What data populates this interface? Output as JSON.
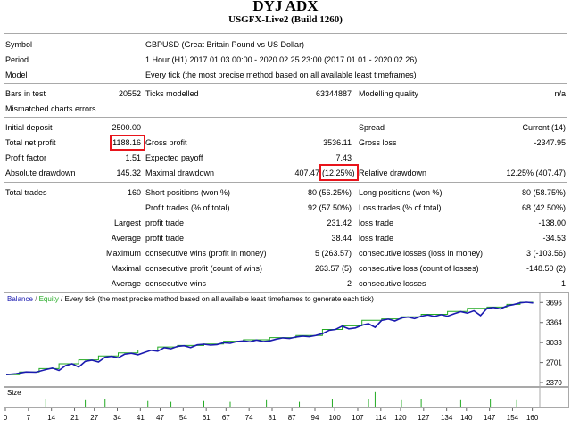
{
  "title": "DYJ ADX",
  "subtitle": "USGFX-Live2 (Build 1260)",
  "report": {
    "symbol_label": "Symbol",
    "symbol_value": "GBPUSD (Great Britain Pound vs US Dollar)",
    "period_label": "Period",
    "period_value": "1 Hour (H1) 2017.01.03 00:00 - 2020.02.25 23:00 (2017.01.01 - 2020.02.26)",
    "model_label": "Model",
    "model_value": "Every tick (the most precise method based on all available least timeframes)",
    "bars_label": "Bars in test",
    "bars_value": "20552",
    "ticks_label": "Ticks modelled",
    "ticks_value": "63344887",
    "quality_label": "Modelling quality",
    "quality_value": "n/a",
    "mismatched_label": "Mismatched charts errors",
    "initial_label": "Initial deposit",
    "initial_value": "2500.00",
    "spread_label": "Spread",
    "spread_value": "Current (14)",
    "netprofit_label": "Total net profit",
    "netprofit_value": "1188.16",
    "grossprofit_label": "Gross profit",
    "grossprofit_value": "3536.11",
    "grossloss_label": "Gross loss",
    "grossloss_value": "-2347.95",
    "pf_label": "Profit factor",
    "pf_value": "1.51",
    "ep_label": "Expected payoff",
    "ep_value": "7.43",
    "absdd_label": "Absolute drawdown",
    "absdd_value": "145.32",
    "maxdd_label": "Maximal drawdown",
    "maxdd_value": "407.47",
    "maxdd_pct": "(12.25%)",
    "reldd_label": "Relative drawdown",
    "reldd_value": "12.25% (407.47)",
    "trades_label": "Total trades",
    "trades_value": "160",
    "short_label": "Short positions (won %)",
    "short_value": "80 (56.25%)",
    "long_label": "Long positions (won %)",
    "long_value": "80 (58.75%)",
    "ptrades_label": "Profit trades (% of total)",
    "ptrades_value": "92 (57.50%)",
    "ltrades_label": "Loss trades (% of total)",
    "ltrades_value": "68 (42.50%)",
    "largest_label": "Largest",
    "lp_label": "profit trade",
    "lp_value": "231.42",
    "ll_label": "loss trade",
    "ll_value": "-138.00",
    "average_label": "Average",
    "ap_label": "profit trade",
    "ap_value": "38.44",
    "al_label": "loss trade",
    "al_value": "-34.53",
    "maximum_label": "Maximum",
    "mcw_label": "consecutive wins (profit in money)",
    "mcw_value": "5 (263.57)",
    "mcl_label": "consecutive losses (loss in money)",
    "mcl_value": "3 (-103.56)",
    "maximal_label": "Maximal",
    "mcp_label": "consecutive profit (count of wins)",
    "mcp_value": "263.57 (5)",
    "mclc_label": "consecutive loss (count of losses)",
    "mclc_value": "-148.50 (2)",
    "average2_label": "Average",
    "acw_label": "consecutive wins",
    "acw_value": "2",
    "acl_label": "consecutive losses",
    "acl_value": "1"
  },
  "chart_data": {
    "type": "line",
    "legend": {
      "balance": "Balance",
      "sep": " / ",
      "equity": "Equity",
      "desc": " / Every tick (the most precise method based on all available least timeframes to generate each tick)"
    },
    "y_ticks": [
      3696,
      3364,
      3033,
      2701,
      2370
    ],
    "x_ticks": [
      0,
      7,
      14,
      21,
      27,
      34,
      41,
      47,
      54,
      61,
      67,
      74,
      81,
      87,
      94,
      100,
      107,
      114,
      120,
      127,
      134,
      140,
      147,
      154,
      160
    ],
    "ylim": [
      2370,
      3700
    ],
    "xlim": [
      0,
      162
    ],
    "size_label": "Size",
    "colors": {
      "balance": "#1a1ab0",
      "equity": "#22aa22",
      "size": "#22aa22"
    },
    "balance": [
      [
        0,
        2500
      ],
      [
        3,
        2515
      ],
      [
        6,
        2545
      ],
      [
        9,
        2540
      ],
      [
        12,
        2585
      ],
      [
        14,
        2610
      ],
      [
        16,
        2570
      ],
      [
        18,
        2650
      ],
      [
        20,
        2680
      ],
      [
        22,
        2625
      ],
      [
        24,
        2720
      ],
      [
        26,
        2740
      ],
      [
        28,
        2710
      ],
      [
        30,
        2790
      ],
      [
        32,
        2805
      ],
      [
        34,
        2780
      ],
      [
        36,
        2840
      ],
      [
        38,
        2855
      ],
      [
        40,
        2830
      ],
      [
        42,
        2870
      ],
      [
        44,
        2905
      ],
      [
        46,
        2890
      ],
      [
        48,
        2950
      ],
      [
        50,
        2930
      ],
      [
        52,
        2970
      ],
      [
        54,
        2980
      ],
      [
        56,
        2950
      ],
      [
        58,
        2995
      ],
      [
        60,
        3005
      ],
      [
        62,
        2990
      ],
      [
        64,
        3000
      ],
      [
        66,
        3030
      ],
      [
        68,
        3020
      ],
      [
        70,
        3050
      ],
      [
        72,
        3060
      ],
      [
        74,
        3045
      ],
      [
        76,
        3075
      ],
      [
        78,
        3050
      ],
      [
        80,
        3060
      ],
      [
        82,
        3090
      ],
      [
        84,
        3110
      ],
      [
        86,
        3100
      ],
      [
        88,
        3125
      ],
      [
        90,
        3140
      ],
      [
        92,
        3130
      ],
      [
        94,
        3150
      ],
      [
        96,
        3180
      ],
      [
        98,
        3235
      ],
      [
        100,
        3250
      ],
      [
        102,
        3305
      ],
      [
        104,
        3260
      ],
      [
        106,
        3275
      ],
      [
        108,
        3320
      ],
      [
        110,
        3345
      ],
      [
        112,
        3285
      ],
      [
        114,
        3400
      ],
      [
        116,
        3420
      ],
      [
        118,
        3390
      ],
      [
        120,
        3440
      ],
      [
        122,
        3455
      ],
      [
        124,
        3430
      ],
      [
        126,
        3470
      ],
      [
        128,
        3490
      ],
      [
        130,
        3465
      ],
      [
        132,
        3495
      ],
      [
        134,
        3470
      ],
      [
        136,
        3510
      ],
      [
        138,
        3545
      ],
      [
        140,
        3520
      ],
      [
        142,
        3560
      ],
      [
        144,
        3480
      ],
      [
        146,
        3600
      ],
      [
        148,
        3615
      ],
      [
        150,
        3590
      ],
      [
        152,
        3640
      ],
      [
        154,
        3660
      ],
      [
        156,
        3690
      ],
      [
        158,
        3700
      ],
      [
        160,
        3688
      ]
    ],
    "equity": [
      [
        0,
        2500
      ],
      [
        4,
        2500
      ],
      [
        4,
        2545
      ],
      [
        10,
        2545
      ],
      [
        10,
        2600
      ],
      [
        16,
        2600
      ],
      [
        16,
        2680
      ],
      [
        22,
        2680
      ],
      [
        22,
        2745
      ],
      [
        28,
        2745
      ],
      [
        28,
        2810
      ],
      [
        34,
        2810
      ],
      [
        34,
        2860
      ],
      [
        40,
        2860
      ],
      [
        40,
        2910
      ],
      [
        46,
        2910
      ],
      [
        46,
        2960
      ],
      [
        52,
        2960
      ],
      [
        52,
        2985
      ],
      [
        60,
        2985
      ],
      [
        60,
        3010
      ],
      [
        66,
        3010
      ],
      [
        66,
        3055
      ],
      [
        72,
        3055
      ],
      [
        72,
        3080
      ],
      [
        80,
        3080
      ],
      [
        80,
        3115
      ],
      [
        88,
        3115
      ],
      [
        88,
        3150
      ],
      [
        96,
        3150
      ],
      [
        96,
        3250
      ],
      [
        102,
        3250
      ],
      [
        102,
        3310
      ],
      [
        108,
        3310
      ],
      [
        108,
        3400
      ],
      [
        114,
        3400
      ],
      [
        114,
        3425
      ],
      [
        120,
        3425
      ],
      [
        120,
        3460
      ],
      [
        126,
        3460
      ],
      [
        126,
        3500
      ],
      [
        134,
        3500
      ],
      [
        134,
        3550
      ],
      [
        140,
        3550
      ],
      [
        140,
        3600
      ],
      [
        146,
        3600
      ],
      [
        146,
        3620
      ],
      [
        152,
        3620
      ],
      [
        152,
        3665
      ],
      [
        156,
        3665
      ],
      [
        156,
        3700
      ],
      [
        160,
        3700
      ]
    ],
    "size_bars": [
      [
        12,
        0.5
      ],
      [
        24,
        0.4
      ],
      [
        30,
        0.5
      ],
      [
        43,
        0.35
      ],
      [
        50,
        0.3
      ],
      [
        60,
        0.35
      ],
      [
        68,
        0.3
      ],
      [
        79,
        0.4
      ],
      [
        89,
        0.3
      ],
      [
        99,
        0.5
      ],
      [
        110,
        0.5
      ],
      [
        112,
        0.9
      ],
      [
        120,
        0.4
      ],
      [
        126,
        0.5
      ],
      [
        138,
        0.4
      ],
      [
        147,
        0.5
      ],
      [
        155,
        0.4
      ]
    ]
  }
}
